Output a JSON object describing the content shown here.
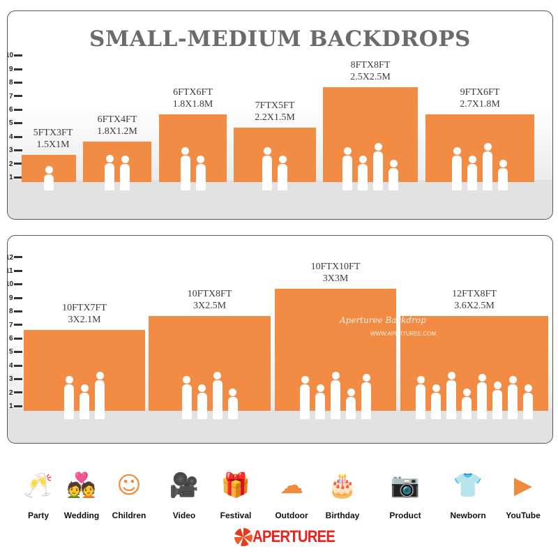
{
  "panel_small": {
    "title": "SMALL-MEDIUM BACKDROPS",
    "ruler_ft": [
      "1",
      "2",
      "3",
      "4",
      "5",
      "6",
      "7",
      "8",
      "9",
      "10"
    ],
    "sizes": [
      {
        "ft": "5FTX3FT",
        "m": "1.5X1M",
        "height_ft": 3
      },
      {
        "ft": "6FTX4FT",
        "m": "1.8X1.2M",
        "height_ft": 4
      },
      {
        "ft": "6FTX6FT",
        "m": "1.8X1.8M",
        "height_ft": 6
      },
      {
        "ft": "7FTX5FT",
        "m": "2.2X1.5M",
        "height_ft": 5
      },
      {
        "ft": "8FTX8FT",
        "m": "2.5X2.5M",
        "height_ft": 8
      },
      {
        "ft": "9FTX6FT",
        "m": "2.7X1.8M",
        "height_ft": 6
      }
    ]
  },
  "panel_large": {
    "ruler_ft": [
      "1",
      "2",
      "3",
      "4",
      "5",
      "6",
      "7",
      "8",
      "9",
      "10",
      "11",
      "12"
    ],
    "sizes": [
      {
        "ft": "10FTX7FT",
        "m": "3X2.1M",
        "height_ft": 7
      },
      {
        "ft": "10FTX8FT",
        "m": "3X2.5M",
        "height_ft": 8
      },
      {
        "ft": "10FTX10FT",
        "m": "3X3M",
        "height_ft": 10
      },
      {
        "ft": "12FTX8FT",
        "m": "3.6X2.5M",
        "height_ft": 8
      }
    ],
    "watermark": "Aperturee Backdrop",
    "watermark_url": "WWW.APERTUREE.COM"
  },
  "uses": [
    {
      "label": "Party",
      "icon": "champagne-glasses-icon",
      "glyph": "🥂"
    },
    {
      "label": "Wedding",
      "icon": "wedding-couple-icon",
      "glyph": "💑"
    },
    {
      "label": "Children",
      "icon": "children-faces-icon",
      "glyph": "☺☺"
    },
    {
      "label": "Video",
      "icon": "movie-camera-icon",
      "glyph": "🎥"
    },
    {
      "label": "Festival",
      "icon": "gift-box-icon",
      "glyph": "🎁"
    },
    {
      "label": "Outdoor",
      "icon": "cloud-icon",
      "glyph": "☁"
    },
    {
      "label": "Birthday",
      "icon": "birthday-cake-icon",
      "glyph": "🎂"
    },
    {
      "label": "Product",
      "icon": "camera-icon",
      "glyph": "📷"
    },
    {
      "label": "Newborn",
      "icon": "baby-onesie-icon",
      "glyph": "👕"
    },
    {
      "label": "YouTube",
      "icon": "play-button-icon",
      "glyph": "▶"
    }
  ],
  "brand": {
    "name": "APERTUREE",
    "color": "#e8241c"
  },
  "colors": {
    "backdrop": "#f28c45",
    "title": "#6b6b6b",
    "icon": "#f08a3c"
  }
}
